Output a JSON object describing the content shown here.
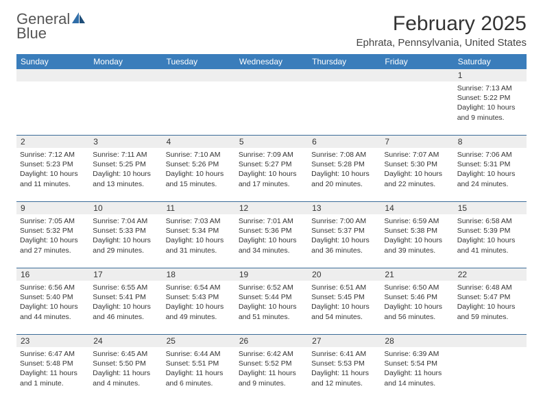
{
  "logo": {
    "text1": "General",
    "text2": "Blue"
  },
  "title": "February 2025",
  "location": "Ephrata, Pennsylvania, United States",
  "columns": [
    "Sunday",
    "Monday",
    "Tuesday",
    "Wednesday",
    "Thursday",
    "Friday",
    "Saturday"
  ],
  "colors": {
    "header_bg": "#3a7dbb",
    "header_fg": "#ffffff",
    "stripe_bg": "#eeeeee",
    "rule": "#3a6a97",
    "accent_blue": "#2f6da8",
    "text": "#333333"
  },
  "weeks": [
    [
      {
        "n": "",
        "lines": []
      },
      {
        "n": "",
        "lines": []
      },
      {
        "n": "",
        "lines": []
      },
      {
        "n": "",
        "lines": []
      },
      {
        "n": "",
        "lines": []
      },
      {
        "n": "",
        "lines": []
      },
      {
        "n": "1",
        "lines": [
          "Sunrise: 7:13 AM",
          "Sunset: 5:22 PM",
          "Daylight: 10 hours and 9 minutes."
        ]
      }
    ],
    [
      {
        "n": "2",
        "lines": [
          "Sunrise: 7:12 AM",
          "Sunset: 5:23 PM",
          "Daylight: 10 hours and 11 minutes."
        ]
      },
      {
        "n": "3",
        "lines": [
          "Sunrise: 7:11 AM",
          "Sunset: 5:25 PM",
          "Daylight: 10 hours and 13 minutes."
        ]
      },
      {
        "n": "4",
        "lines": [
          "Sunrise: 7:10 AM",
          "Sunset: 5:26 PM",
          "Daylight: 10 hours and 15 minutes."
        ]
      },
      {
        "n": "5",
        "lines": [
          "Sunrise: 7:09 AM",
          "Sunset: 5:27 PM",
          "Daylight: 10 hours and 17 minutes."
        ]
      },
      {
        "n": "6",
        "lines": [
          "Sunrise: 7:08 AM",
          "Sunset: 5:28 PM",
          "Daylight: 10 hours and 20 minutes."
        ]
      },
      {
        "n": "7",
        "lines": [
          "Sunrise: 7:07 AM",
          "Sunset: 5:30 PM",
          "Daylight: 10 hours and 22 minutes."
        ]
      },
      {
        "n": "8",
        "lines": [
          "Sunrise: 7:06 AM",
          "Sunset: 5:31 PM",
          "Daylight: 10 hours and 24 minutes."
        ]
      }
    ],
    [
      {
        "n": "9",
        "lines": [
          "Sunrise: 7:05 AM",
          "Sunset: 5:32 PM",
          "Daylight: 10 hours and 27 minutes."
        ]
      },
      {
        "n": "10",
        "lines": [
          "Sunrise: 7:04 AM",
          "Sunset: 5:33 PM",
          "Daylight: 10 hours and 29 minutes."
        ]
      },
      {
        "n": "11",
        "lines": [
          "Sunrise: 7:03 AM",
          "Sunset: 5:34 PM",
          "Daylight: 10 hours and 31 minutes."
        ]
      },
      {
        "n": "12",
        "lines": [
          "Sunrise: 7:01 AM",
          "Sunset: 5:36 PM",
          "Daylight: 10 hours and 34 minutes."
        ]
      },
      {
        "n": "13",
        "lines": [
          "Sunrise: 7:00 AM",
          "Sunset: 5:37 PM",
          "Daylight: 10 hours and 36 minutes."
        ]
      },
      {
        "n": "14",
        "lines": [
          "Sunrise: 6:59 AM",
          "Sunset: 5:38 PM",
          "Daylight: 10 hours and 39 minutes."
        ]
      },
      {
        "n": "15",
        "lines": [
          "Sunrise: 6:58 AM",
          "Sunset: 5:39 PM",
          "Daylight: 10 hours and 41 minutes."
        ]
      }
    ],
    [
      {
        "n": "16",
        "lines": [
          "Sunrise: 6:56 AM",
          "Sunset: 5:40 PM",
          "Daylight: 10 hours and 44 minutes."
        ]
      },
      {
        "n": "17",
        "lines": [
          "Sunrise: 6:55 AM",
          "Sunset: 5:41 PM",
          "Daylight: 10 hours and 46 minutes."
        ]
      },
      {
        "n": "18",
        "lines": [
          "Sunrise: 6:54 AM",
          "Sunset: 5:43 PM",
          "Daylight: 10 hours and 49 minutes."
        ]
      },
      {
        "n": "19",
        "lines": [
          "Sunrise: 6:52 AM",
          "Sunset: 5:44 PM",
          "Daylight: 10 hours and 51 minutes."
        ]
      },
      {
        "n": "20",
        "lines": [
          "Sunrise: 6:51 AM",
          "Sunset: 5:45 PM",
          "Daylight: 10 hours and 54 minutes."
        ]
      },
      {
        "n": "21",
        "lines": [
          "Sunrise: 6:50 AM",
          "Sunset: 5:46 PM",
          "Daylight: 10 hours and 56 minutes."
        ]
      },
      {
        "n": "22",
        "lines": [
          "Sunrise: 6:48 AM",
          "Sunset: 5:47 PM",
          "Daylight: 10 hours and 59 minutes."
        ]
      }
    ],
    [
      {
        "n": "23",
        "lines": [
          "Sunrise: 6:47 AM",
          "Sunset: 5:48 PM",
          "Daylight: 11 hours and 1 minute."
        ]
      },
      {
        "n": "24",
        "lines": [
          "Sunrise: 6:45 AM",
          "Sunset: 5:50 PM",
          "Daylight: 11 hours and 4 minutes."
        ]
      },
      {
        "n": "25",
        "lines": [
          "Sunrise: 6:44 AM",
          "Sunset: 5:51 PM",
          "Daylight: 11 hours and 6 minutes."
        ]
      },
      {
        "n": "26",
        "lines": [
          "Sunrise: 6:42 AM",
          "Sunset: 5:52 PM",
          "Daylight: 11 hours and 9 minutes."
        ]
      },
      {
        "n": "27",
        "lines": [
          "Sunrise: 6:41 AM",
          "Sunset: 5:53 PM",
          "Daylight: 11 hours and 12 minutes."
        ]
      },
      {
        "n": "28",
        "lines": [
          "Sunrise: 6:39 AM",
          "Sunset: 5:54 PM",
          "Daylight: 11 hours and 14 minutes."
        ]
      },
      {
        "n": "",
        "lines": []
      }
    ]
  ]
}
